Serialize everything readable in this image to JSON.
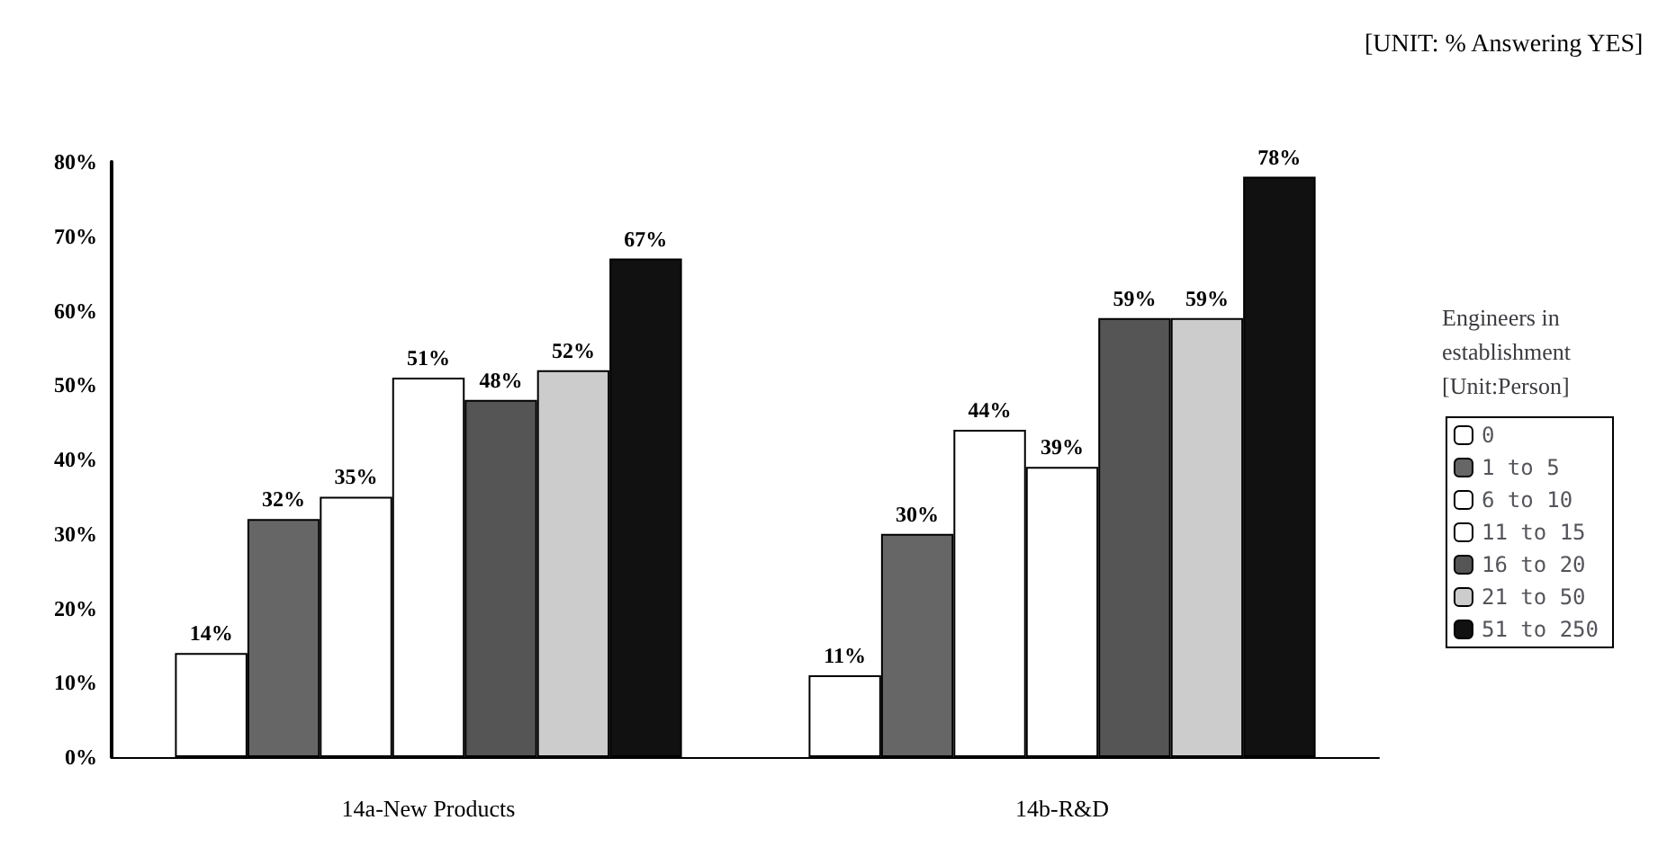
{
  "chart_data": {
    "type": "bar",
    "categories": [
      "14a-New Products",
      "14b-R&D"
    ],
    "series": [
      {
        "name": "0",
        "color": "#ffffff",
        "values": [
          14,
          11
        ],
        "value_labels": [
          "14%",
          "11%"
        ]
      },
      {
        "name": "1 to 5",
        "color": "#666666",
        "values": [
          32,
          30
        ],
        "value_labels": [
          "32%",
          "30%"
        ]
      },
      {
        "name": "6 to 10",
        "color": "#ffffff",
        "values": [
          35,
          44
        ],
        "value_labels": [
          "35%",
          "44%"
        ]
      },
      {
        "name": "11 to 15",
        "color": "#ffffff",
        "values": [
          51,
          39
        ],
        "value_labels": [
          "51%",
          "39%"
        ]
      },
      {
        "name": "16 to 20",
        "color": "#555555",
        "values": [
          48,
          59
        ],
        "value_labels": [
          "48%",
          "59%"
        ]
      },
      {
        "name": "21 to 50",
        "color": "#cccccc",
        "values": [
          52,
          59
        ],
        "value_labels": [
          "52%",
          "59%"
        ]
      },
      {
        "name": "51 to 250",
        "color": "#111111",
        "values": [
          67,
          78
        ],
        "value_labels": [
          "67%",
          "78%"
        ]
      }
    ],
    "ylim": [
      0,
      80
    ],
    "yticks": [
      {
        "value": 0,
        "label": "0%"
      },
      {
        "value": 10,
        "label": "10%"
      },
      {
        "value": 20,
        "label": "20%"
      },
      {
        "value": 30,
        "label": "30%"
      },
      {
        "value": 40,
        "label": "40%"
      },
      {
        "value": 50,
        "label": "50%"
      },
      {
        "value": 60,
        "label": "60%"
      },
      {
        "value": 70,
        "label": "70%"
      },
      {
        "value": 80,
        "label": "80%"
      }
    ],
    "legend_title": "Engineers in establishment [Unit:Person]",
    "annotations": [
      "[UNIT: % Answering YES]"
    ],
    "legend": "right",
    "grid": false
  }
}
